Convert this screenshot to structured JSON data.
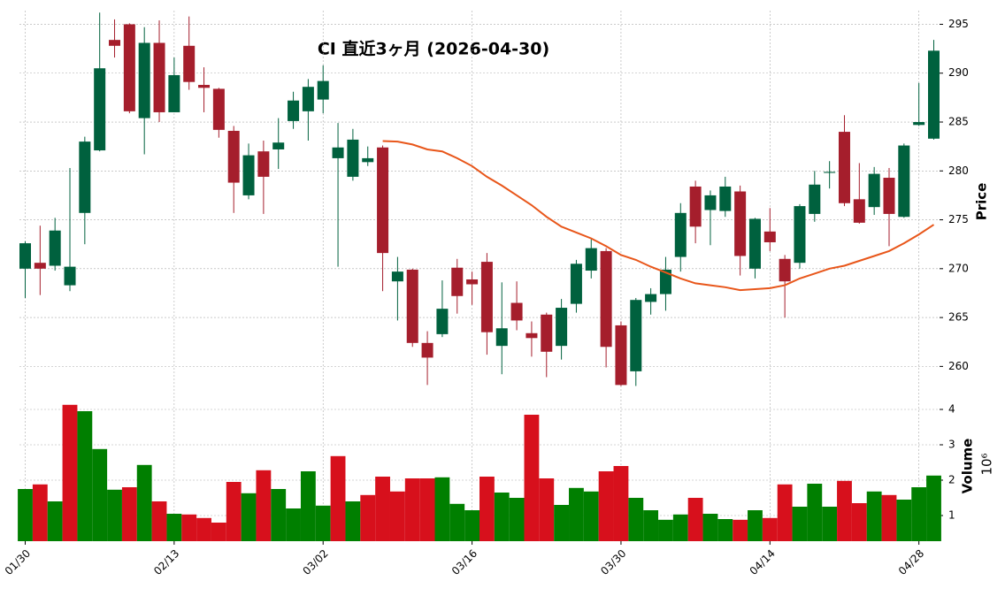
{
  "chart_data": {
    "type": "candlestick",
    "title": "CI  直近3ヶ月 (2026-04-30)",
    "categories": [
      "01/30",
      null,
      null,
      null,
      null,
      null,
      null,
      null,
      null,
      null,
      "02/13",
      null,
      null,
      null,
      null,
      null,
      null,
      null,
      null,
      null,
      "03/02",
      null,
      null,
      null,
      null,
      null,
      null,
      null,
      null,
      null,
      "03/16",
      null,
      null,
      null,
      null,
      null,
      null,
      null,
      null,
      null,
      "03/30",
      null,
      null,
      null,
      null,
      null,
      null,
      null,
      null,
      null,
      "04/14",
      null,
      null,
      null,
      null,
      null,
      null,
      null,
      null,
      null,
      "04/28",
      null
    ],
    "open": [
      270.0,
      270.6,
      270.3,
      268.3,
      275.7,
      282.1,
      293.4,
      295.0,
      285.4,
      293.1,
      286.0,
      292.8,
      288.8,
      288.4,
      284.1,
      277.5,
      282.0,
      282.2,
      285.1,
      286.1,
      287.3,
      281.3,
      279.4,
      280.9,
      282.4,
      268.7,
      269.9,
      262.4,
      263.3,
      270.1,
      268.9,
      270.7,
      262.1,
      266.5,
      263.4,
      265.3,
      262.1,
      266.4,
      269.8,
      271.8,
      264.2,
      259.5,
      266.6,
      267.4,
      271.2,
      278.4,
      276.0,
      275.9,
      277.9,
      270.0,
      273.8,
      271.0,
      270.6,
      275.6,
      279.8,
      284.0,
      277.1,
      276.3,
      279.3,
      275.3,
      284.7,
      283.3
    ],
    "high": [
      272.8,
      274.4,
      275.2,
      280.3,
      283.5,
      296.2,
      295.5,
      295.1,
      294.7,
      295.4,
      291.6,
      295.8,
      290.6,
      288.5,
      284.6,
      282.8,
      283.1,
      285.4,
      288.1,
      289.4,
      290.8,
      284.9,
      284.3,
      282.5,
      282.6,
      271.2,
      270.0,
      263.6,
      268.8,
      271.0,
      269.7,
      271.6,
      268.6,
      268.7,
      264.6,
      265.5,
      266.9,
      270.9,
      273.0,
      272.1,
      264.6,
      267.0,
      268.0,
      271.2,
      276.7,
      279.0,
      278.0,
      279.4,
      278.5,
      275.2,
      276.2,
      271.4,
      276.6,
      280.0,
      281.0,
      285.7,
      280.8,
      280.4,
      280.3,
      282.8,
      289.0,
      293.4
    ],
    "low": [
      267.0,
      267.3,
      269.8,
      267.7,
      272.5,
      282.0,
      291.6,
      285.9,
      281.7,
      285.0,
      286.0,
      288.3,
      286.0,
      283.4,
      275.7,
      277.1,
      275.6,
      280.2,
      284.3,
      283.1,
      285.9,
      270.2,
      279.0,
      280.5,
      267.7,
      264.7,
      262.0,
      258.1,
      263.0,
      265.4,
      266.3,
      261.2,
      259.2,
      263.7,
      261.0,
      258.9,
      260.7,
      265.5,
      269.0,
      259.9,
      258.0,
      258.0,
      265.3,
      265.7,
      269.7,
      272.6,
      272.4,
      275.3,
      269.3,
      269.0,
      271.8,
      265.0,
      270.0,
      274.8,
      278.2,
      276.4,
      274.6,
      275.5,
      272.3,
      275.2,
      284.6,
      283.2
    ],
    "close": [
      272.6,
      270.0,
      273.9,
      270.2,
      283.0,
      290.5,
      292.8,
      286.1,
      293.1,
      286.0,
      289.8,
      289.1,
      288.5,
      284.2,
      278.8,
      281.6,
      279.4,
      282.9,
      287.2,
      288.6,
      289.2,
      282.4,
      283.2,
      281.3,
      271.6,
      269.7,
      262.4,
      260.9,
      265.9,
      267.2,
      268.4,
      263.5,
      263.9,
      264.7,
      262.9,
      261.5,
      266.0,
      270.5,
      272.1,
      262.0,
      258.1,
      266.8,
      267.4,
      269.9,
      275.7,
      274.3,
      277.5,
      278.4,
      271.3,
      275.1,
      272.7,
      268.7,
      276.4,
      278.6,
      279.9,
      276.7,
      274.7,
      279.7,
      275.6,
      282.6,
      285.0,
      292.3
    ],
    "up_color": "#00613e",
    "down_color": "#a51e2c",
    "ma": {
      "color": "#e8561a",
      "values": [
        null,
        null,
        null,
        null,
        null,
        null,
        null,
        null,
        null,
        null,
        null,
        null,
        null,
        null,
        null,
        null,
        null,
        null,
        null,
        null,
        null,
        null,
        null,
        null,
        283.06,
        283.0,
        282.7,
        282.2,
        282.0,
        281.3,
        280.5,
        279.4,
        278.5,
        277.5,
        276.5,
        275.3,
        274.3,
        273.7,
        273.1,
        272.3,
        271.4,
        270.9,
        270.2,
        269.6,
        269.0,
        268.5,
        268.3,
        268.1,
        267.8,
        267.9,
        268.0,
        268.3,
        269.0,
        269.5,
        270.0,
        270.3,
        270.8,
        271.3,
        271.8,
        272.6,
        273.5,
        274.5
      ]
    },
    "ylabel": "Price",
    "ylim": [
      257.5,
      296.4
    ],
    "yticks": [
      260,
      265,
      270,
      275,
      280,
      285,
      290,
      295
    ],
    "grid": true,
    "volume": {
      "ylabel": "Volume",
      "scale_label": "10⁶",
      "up_color": "#007f00",
      "down_color": "#d7101c",
      "ylim": [
        0.275,
        4.5
      ],
      "yticks": [
        1,
        2,
        3,
        4
      ],
      "values": [
        1.75,
        1.88,
        1.4,
        4.13,
        3.95,
        2.88,
        1.73,
        1.8,
        2.43,
        1.4,
        1.05,
        1.03,
        0.93,
        0.8,
        1.95,
        1.63,
        2.28,
        1.75,
        1.2,
        2.25,
        1.28,
        2.68,
        1.4,
        1.58,
        2.1,
        1.68,
        2.05,
        2.05,
        2.08,
        1.33,
        1.15,
        2.1,
        1.65,
        1.5,
        3.85,
        2.05,
        1.3,
        1.78,
        1.68,
        2.25,
        2.4,
        1.5,
        1.15,
        0.88,
        1.03,
        1.5,
        1.05,
        0.9,
        0.88,
        1.15,
        0.93,
        1.88,
        1.25,
        1.9,
        1.25,
        1.98,
        1.35,
        1.68,
        1.58,
        1.45,
        1.8,
        2.13
      ]
    }
  }
}
